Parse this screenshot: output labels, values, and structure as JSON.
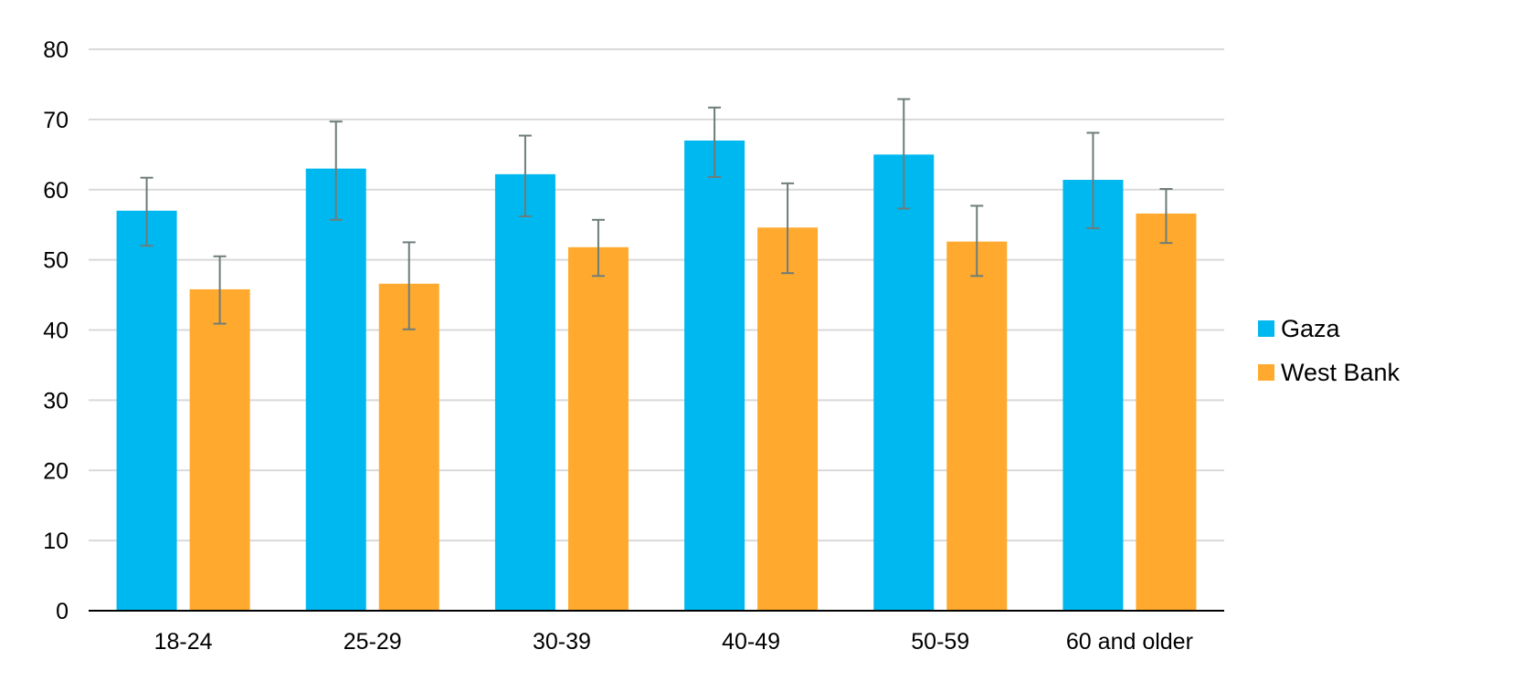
{
  "chart_data": {
    "type": "bar",
    "categories": [
      "18-24",
      "25-29",
      "30-39",
      "40-49",
      "50-59",
      "60 and older"
    ],
    "series": [
      {
        "name": "Gaza",
        "color": "#00b8f0",
        "values": [
          57,
          63,
          62.2,
          67,
          65,
          61.4
        ],
        "error_low": [
          52,
          55.7,
          56.2,
          61.8,
          57.3,
          54.5
        ],
        "error_high": [
          61.7,
          69.7,
          67.7,
          71.7,
          72.9,
          68.1
        ]
      },
      {
        "name": "West Bank",
        "color": "#ffaa2e",
        "values": [
          45.8,
          46.6,
          51.8,
          54.6,
          52.6,
          56.6
        ],
        "error_low": [
          40.9,
          40.1,
          47.7,
          48.1,
          47.7,
          52.4
        ],
        "error_high": [
          50.5,
          52.5,
          55.7,
          60.9,
          57.7,
          60.1
        ]
      }
    ],
    "ylim": [
      0,
      80
    ],
    "yticks": [
      "0",
      "10",
      "20",
      "30",
      "40",
      "50",
      "60",
      "70",
      "80"
    ],
    "grid": true,
    "legend": "right",
    "error_bar_color": "#6d7c7a",
    "grid_color": "#d9d9d9"
  }
}
